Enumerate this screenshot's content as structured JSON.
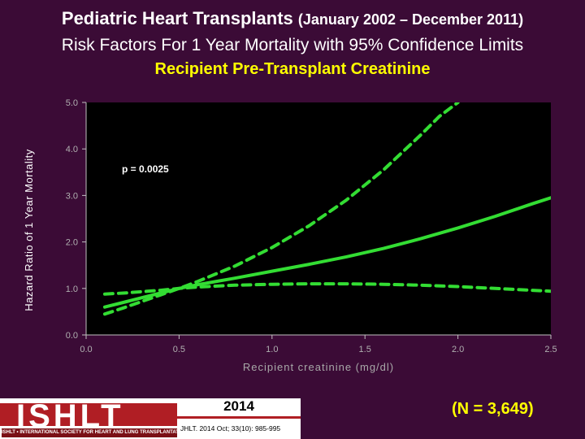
{
  "title": {
    "main": "Pediatric Heart Transplants",
    "dates": "(January 2002 – December 2011)",
    "subtitle": "Risk Factors For 1 Year Mortality with 95% Confidence Limits",
    "variable": "Recipient Pre-Transplant Creatinine"
  },
  "chart_data": {
    "type": "line",
    "xlabel": "Recipient creatinine (mg/dl)",
    "ylabel": "Hazard Ratio of 1 Year Mortality",
    "xlim": [
      0.0,
      2.5
    ],
    "ylim": [
      0.0,
      5.0
    ],
    "x_ticks": [
      "0.0",
      "0.5",
      "1.0",
      "1.5",
      "2.0",
      "2.5"
    ],
    "y_ticks": [
      "0.0",
      "1.0",
      "2.0",
      "3.0",
      "4.0",
      "5.0"
    ],
    "annotation": "p = 0.0025",
    "grid": false,
    "series": [
      {
        "style": "solid",
        "x": [
          0.1,
          0.2,
          0.3,
          0.4,
          0.5,
          0.6,
          0.8,
          1.0,
          1.2,
          1.4,
          1.6,
          1.8,
          2.0,
          2.2,
          2.4,
          2.5
        ],
        "y": [
          0.6,
          0.7,
          0.8,
          0.9,
          1.0,
          1.08,
          1.22,
          1.37,
          1.52,
          1.68,
          1.86,
          2.07,
          2.3,
          2.55,
          2.82,
          2.95
        ]
      },
      {
        "style": "dashed",
        "x": [
          0.1,
          0.2,
          0.3,
          0.4,
          0.5,
          0.6,
          0.8,
          1.0,
          1.2,
          1.4,
          1.6,
          1.8,
          1.9,
          2.0
        ],
        "y": [
          0.45,
          0.58,
          0.72,
          0.86,
          1.0,
          1.15,
          1.48,
          1.88,
          2.35,
          2.9,
          3.55,
          4.3,
          4.7,
          5.0
        ]
      },
      {
        "style": "dashed",
        "x": [
          0.1,
          0.2,
          0.3,
          0.4,
          0.5,
          0.6,
          0.8,
          1.0,
          1.2,
          1.4,
          1.6,
          1.8,
          2.0,
          2.2,
          2.4,
          2.5
        ],
        "y": [
          0.88,
          0.9,
          0.93,
          0.96,
          1.0,
          1.03,
          1.07,
          1.09,
          1.1,
          1.1,
          1.09,
          1.07,
          1.04,
          1.0,
          0.96,
          0.94
        ]
      }
    ],
    "line_color": "#33dd33"
  },
  "footer": {
    "logo": "ISHLT",
    "logo_subtitle": "ISHLT • INTERNATIONAL SOCIETY FOR HEART AND LUNG TRANSPLANTATION",
    "year": "2014",
    "citation": "JHLT. 2014 Oct; 33(10): 985-995",
    "n_count": "(N = 3,649)"
  }
}
